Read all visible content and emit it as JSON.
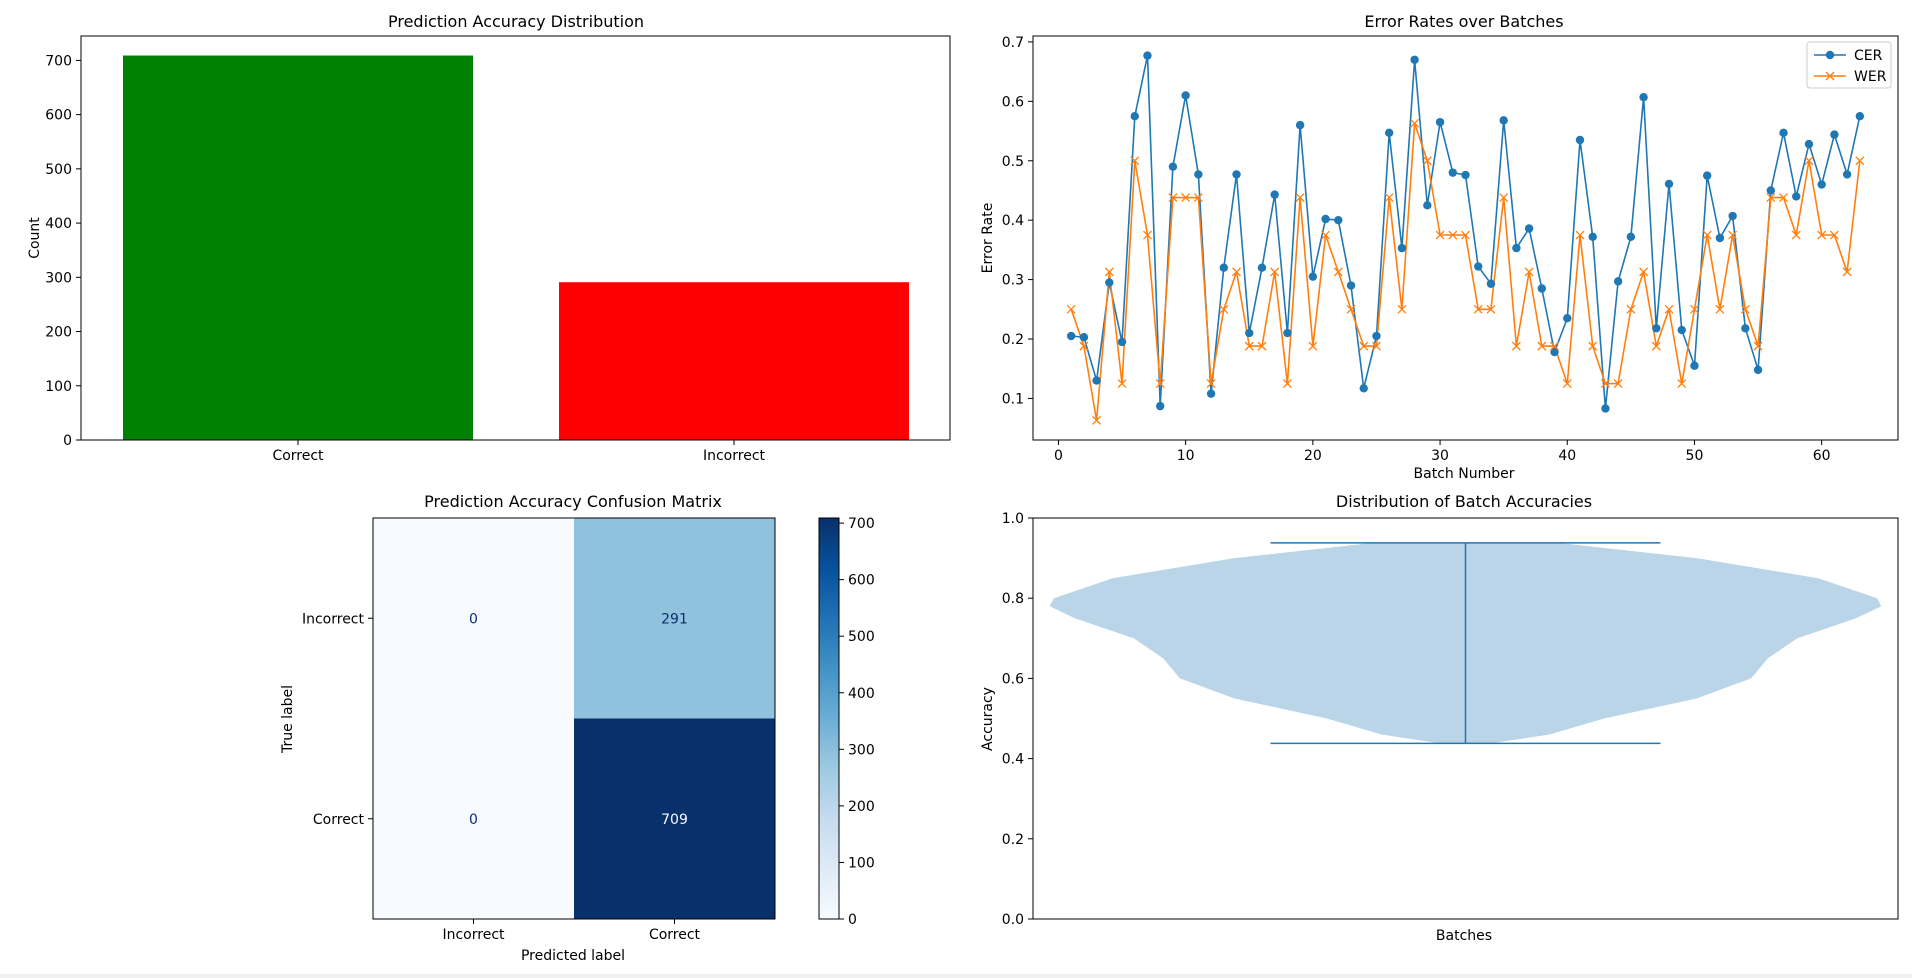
{
  "chart_data": [
    {
      "type": "bar",
      "title": "Prediction Accuracy Distribution",
      "xlabel": "",
      "ylabel": "Count",
      "categories": [
        "Correct",
        "Incorrect"
      ],
      "values": [
        709,
        291
      ],
      "colors": [
        "#008000",
        "#ff0000"
      ],
      "ylim": [
        0,
        745
      ],
      "yticks": [
        0,
        100,
        200,
        300,
        400,
        500,
        600,
        700
      ],
      "grid": false
    },
    {
      "type": "line",
      "title": "Error Rates over Batches",
      "xlabel": "Batch Number",
      "ylabel": "Error Rate",
      "xlim": [
        -2,
        66
      ],
      "ylim": [
        0.03,
        0.71
      ],
      "xticks": [
        0,
        10,
        20,
        30,
        40,
        50,
        60
      ],
      "yticks": [
        0.1,
        0.2,
        0.3,
        0.4,
        0.5,
        0.6,
        0.7
      ],
      "legend_position": "top-right",
      "x": [
        1,
        2,
        3,
        4,
        5,
        6,
        7,
        8,
        9,
        10,
        11,
        12,
        13,
        14,
        15,
        16,
        17,
        18,
        19,
        20,
        21,
        22,
        23,
        24,
        25,
        26,
        27,
        28,
        29,
        30,
        31,
        32,
        33,
        34,
        35,
        36,
        37,
        38,
        39,
        40,
        41,
        42,
        43,
        44,
        45,
        46,
        47,
        48,
        49,
        50,
        51,
        52,
        53,
        54,
        55,
        56,
        57,
        58,
        59,
        60,
        61,
        62,
        63
      ],
      "series": [
        {
          "name": "CER",
          "color": "#1f77b4",
          "marker": "circle",
          "values": [
            0.205,
            0.203,
            0.13,
            0.295,
            0.195,
            0.575,
            0.677,
            0.087,
            0.49,
            0.61,
            0.477,
            0.108,
            0.32,
            0.477,
            0.21,
            0.32,
            0.443,
            0.21,
            0.56,
            0.305,
            0.402,
            0.4,
            0.29,
            0.117,
            0.205,
            0.547,
            0.353,
            0.67,
            0.425,
            0.565,
            0.48,
            0.476,
            0.322,
            0.293,
            0.568,
            0.353,
            0.386,
            0.285,
            0.178,
            0.235,
            0.535,
            0.372,
            0.083,
            0.297,
            0.372,
            0.607,
            0.218,
            0.461,
            0.215,
            0.155,
            0.475,
            0.37,
            0.407,
            0.218,
            0.148,
            0.45,
            0.547,
            0.44,
            0.528,
            0.46,
            0.544,
            0.477,
            0.575
          ]
        },
        {
          "name": "WER",
          "color": "#ff7f0e",
          "marker": "x",
          "values": [
            0.25,
            0.188,
            0.063,
            0.313,
            0.125,
            0.5,
            0.375,
            0.125,
            0.438,
            0.438,
            0.438,
            0.125,
            0.25,
            0.313,
            0.188,
            0.188,
            0.313,
            0.125,
            0.438,
            0.188,
            0.375,
            0.313,
            0.25,
            0.188,
            0.188,
            0.438,
            0.25,
            0.563,
            0.5,
            0.375,
            0.375,
            0.375,
            0.25,
            0.25,
            0.438,
            0.188,
            0.313,
            0.188,
            0.188,
            0.125,
            0.375,
            0.188,
            0.125,
            0.125,
            0.25,
            0.313,
            0.188,
            0.25,
            0.125,
            0.25,
            0.375,
            0.25,
            0.375,
            0.25,
            0.188,
            0.438,
            0.438,
            0.375,
            0.5,
            0.375,
            0.375,
            0.313,
            0.5
          ]
        }
      ]
    },
    {
      "type": "heatmap",
      "title": "Prediction Accuracy Confusion Matrix",
      "xlabel": "Predicted label",
      "ylabel": "True label",
      "x_categories": [
        "Incorrect",
        "Correct"
      ],
      "y_categories": [
        "Incorrect",
        "Correct"
      ],
      "matrix": [
        [
          0,
          291
        ],
        [
          0,
          709
        ]
      ],
      "colormap": "Blues",
      "colorbar_range": [
        0,
        709
      ],
      "colorbar_ticks": [
        0,
        100,
        200,
        300,
        400,
        500,
        600,
        700
      ]
    },
    {
      "type": "violin",
      "title": "Distribution of Batch Accuracies",
      "xlabel": "Batches",
      "ylabel": "Accuracy",
      "ylim": [
        0,
        1.0
      ],
      "yticks": [
        0.0,
        0.2,
        0.4,
        0.6,
        0.8,
        1.0
      ],
      "min": 0.438,
      "max": 0.938,
      "fill_color": "#bad4e8",
      "line_color": "#1f77b4",
      "density_profile": [
        [
          0.438,
          0.06
        ],
        [
          0.46,
          0.2
        ],
        [
          0.5,
          0.33
        ],
        [
          0.55,
          0.55
        ],
        [
          0.6,
          0.68
        ],
        [
          0.65,
          0.72
        ],
        [
          0.7,
          0.79
        ],
        [
          0.75,
          0.93
        ],
        [
          0.78,
          0.99
        ],
        [
          0.8,
          0.98
        ],
        [
          0.85,
          0.84
        ],
        [
          0.9,
          0.55
        ],
        [
          0.938,
          0.22
        ]
      ]
    }
  ]
}
